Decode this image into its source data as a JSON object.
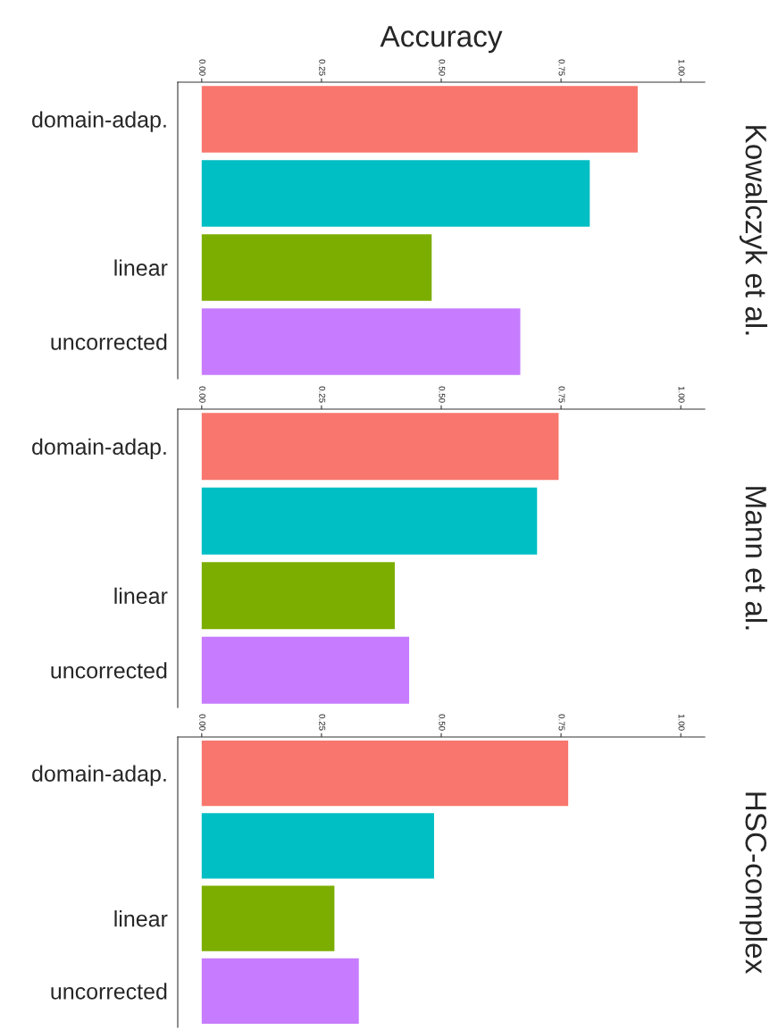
{
  "chart_data": [
    {
      "type": "bar",
      "orientation": "horizontal",
      "xlabel": "Accuracy",
      "ylabel": "Kowalczyk et al.",
      "categories": [
        "domain-adap.",
        null,
        "linear",
        "uncorrected"
      ],
      "colors": [
        "#f8766d",
        "#00bfc4",
        "#7cae00",
        "#c77cff"
      ],
      "values": [
        0.91,
        0.81,
        0.48,
        0.665
      ],
      "xlim": [
        -0.05,
        1.05
      ],
      "xticks": [
        {
          "value": 0,
          "label": "0.00"
        },
        {
          "value": 0.25,
          "label": "0.25"
        },
        {
          "value": 0.5,
          "label": "0.50"
        },
        {
          "value": 0.75,
          "label": "0.75"
        },
        {
          "value": 1,
          "label": "1.00"
        }
      ],
      "grid": false,
      "legend": false
    },
    {
      "type": "bar",
      "orientation": "horizontal",
      "ylabel": "Mann et al.",
      "categories": [
        "domain-adap.",
        null,
        "linear",
        "uncorrected"
      ],
      "colors": [
        "#f8766d",
        "#00bfc4",
        "#7cae00",
        "#c77cff"
      ],
      "values": [
        0.745,
        0.7,
        0.403,
        0.433
      ],
      "xlim": [
        -0.05,
        1.05
      ],
      "xticks": [
        {
          "value": 0,
          "label": "0.00"
        },
        {
          "value": 0.25,
          "label": "0.25"
        },
        {
          "value": 0.5,
          "label": "0.50"
        },
        {
          "value": 0.75,
          "label": "0.75"
        },
        {
          "value": 1,
          "label": "1.00"
        }
      ],
      "grid": false,
      "legend": false
    },
    {
      "type": "bar",
      "orientation": "horizontal",
      "ylabel": "HSC-complex",
      "categories": [
        "domain-adap.",
        null,
        "linear",
        "uncorrected"
      ],
      "colors": [
        "#f8766d",
        "#00bfc4",
        "#7cae00",
        "#c77cff"
      ],
      "values": [
        0.765,
        0.485,
        0.277,
        0.328
      ],
      "xlim": [
        -0.05,
        1.05
      ],
      "xticks": [
        {
          "value": 0,
          "label": "0.00"
        },
        {
          "value": 0.25,
          "label": "0.25"
        },
        {
          "value": 0.5,
          "label": "0.50"
        },
        {
          "value": 0.75,
          "label": "0.75"
        },
        {
          "value": 1,
          "label": "1.00"
        }
      ],
      "grid": false,
      "legend": false
    }
  ]
}
